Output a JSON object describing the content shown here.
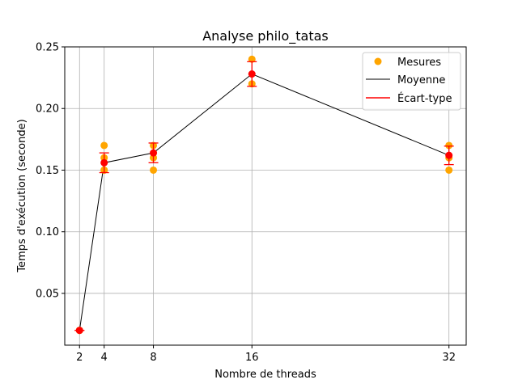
{
  "chart_data": {
    "type": "line",
    "title": "Analyse philo_tatas",
    "xlabel": "Nombre de threads",
    "ylabel": "Temps d'exécution (seconde)",
    "x_ticks": [
      2,
      4,
      8,
      16,
      32
    ],
    "y_ticks": [
      0.05,
      0.1,
      0.15,
      0.2,
      0.25
    ],
    "y_tick_labels": [
      "0.05",
      "0.10",
      "0.15",
      "0.20",
      "0.25"
    ],
    "xlim": [
      0.8,
      33.4
    ],
    "ylim": [
      0.008,
      0.25
    ],
    "grid": true,
    "legend_position": "top-right",
    "colors": {
      "measures": "#ffa500",
      "mean": "#000000",
      "std": "#ff0000"
    },
    "legend": [
      {
        "label": "Mesures",
        "kind": "marker"
      },
      {
        "label": "Moyenne",
        "kind": "line"
      },
      {
        "label": "Écart-type",
        "kind": "errorbar"
      }
    ],
    "measures": [
      {
        "x": 2,
        "y": 0.02
      },
      {
        "x": 2,
        "y": 0.02
      },
      {
        "x": 2,
        "y": 0.02
      },
      {
        "x": 4,
        "y": 0.17
      },
      {
        "x": 4,
        "y": 0.16
      },
      {
        "x": 4,
        "y": 0.15
      },
      {
        "x": 4,
        "y": 0.15
      },
      {
        "x": 8,
        "y": 0.17
      },
      {
        "x": 8,
        "y": 0.16
      },
      {
        "x": 8,
        "y": 0.15
      },
      {
        "x": 16,
        "y": 0.24
      },
      {
        "x": 16,
        "y": 0.22
      },
      {
        "x": 32,
        "y": 0.17
      },
      {
        "x": 32,
        "y": 0.16
      },
      {
        "x": 32,
        "y": 0.15
      }
    ],
    "mean": [
      {
        "x": 2,
        "y": 0.02
      },
      {
        "x": 4,
        "y": 0.156
      },
      {
        "x": 8,
        "y": 0.164
      },
      {
        "x": 16,
        "y": 0.228
      },
      {
        "x": 32,
        "y": 0.162
      }
    ],
    "std": [
      0.0,
      0.008,
      0.008,
      0.01,
      0.0075
    ]
  }
}
